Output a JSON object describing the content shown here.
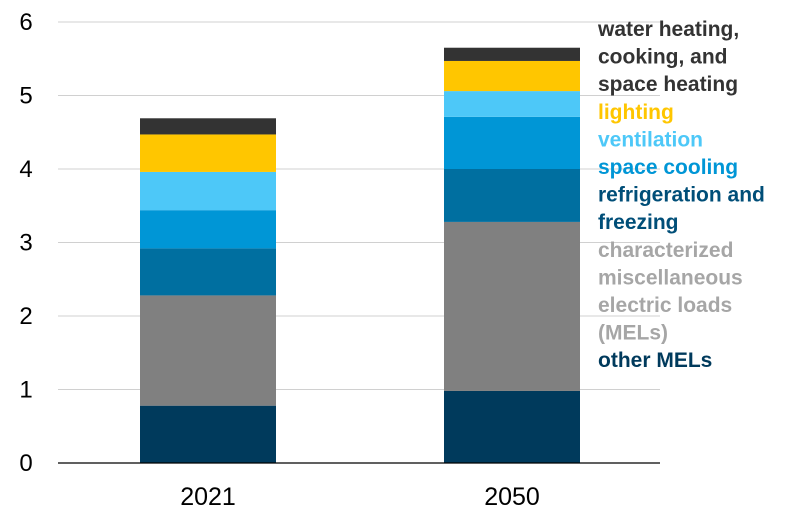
{
  "chart_data": {
    "type": "bar",
    "stacked": true,
    "categories": [
      "2021",
      "2050"
    ],
    "ylim": [
      0,
      6
    ],
    "yticks": [
      "0",
      "1",
      "2",
      "3",
      "4",
      "5",
      "6"
    ],
    "grid": true,
    "legend_position": "right",
    "series": [
      {
        "name": "other MELs",
        "color": "#003a5c",
        "values": [
          0.78,
          0.98
        ]
      },
      {
        "name": "characterized miscellaneous electric loads (MELs)",
        "color": "#808080",
        "values": [
          1.5,
          2.3
        ]
      },
      {
        "name": "refrigeration and freezing",
        "color": "#006fa0",
        "values": [
          0.64,
          0.72
        ]
      },
      {
        "name": "space cooling",
        "color": "#0096d6",
        "values": [
          0.52,
          0.71
        ]
      },
      {
        "name": "ventilation",
        "color": "#4dc8f8",
        "values": [
          0.52,
          0.35
        ]
      },
      {
        "name": "lighting",
        "color": "#ffc600",
        "values": [
          0.51,
          0.41
        ]
      },
      {
        "name": "water heating, cooking, and space heating",
        "color": "#333333",
        "values": [
          0.22,
          0.18
        ]
      }
    ],
    "legend_lines": [
      {
        "series": 6,
        "lines": [
          "water heating,",
          "cooking, and",
          "space heating"
        ]
      },
      {
        "series": 5,
        "lines": [
          "lighting"
        ]
      },
      {
        "series": 4,
        "lines": [
          "ventilation"
        ]
      },
      {
        "series": 3,
        "lines": [
          "space cooling"
        ]
      },
      {
        "series": 2,
        "lines": [
          "refrigeration and",
          "freezing"
        ]
      },
      {
        "series": 1,
        "lines": [
          "characterized",
          "miscellaneous",
          "electric loads",
          "(MELs)"
        ]
      },
      {
        "series": 0,
        "lines": [
          "other MELs"
        ]
      }
    ],
    "legend_text_colors": [
      "#003a5c",
      "#a6a6a6",
      "#004e78",
      "#0096d6",
      "#4dc8f8",
      "#ffc600",
      "#333333"
    ]
  }
}
